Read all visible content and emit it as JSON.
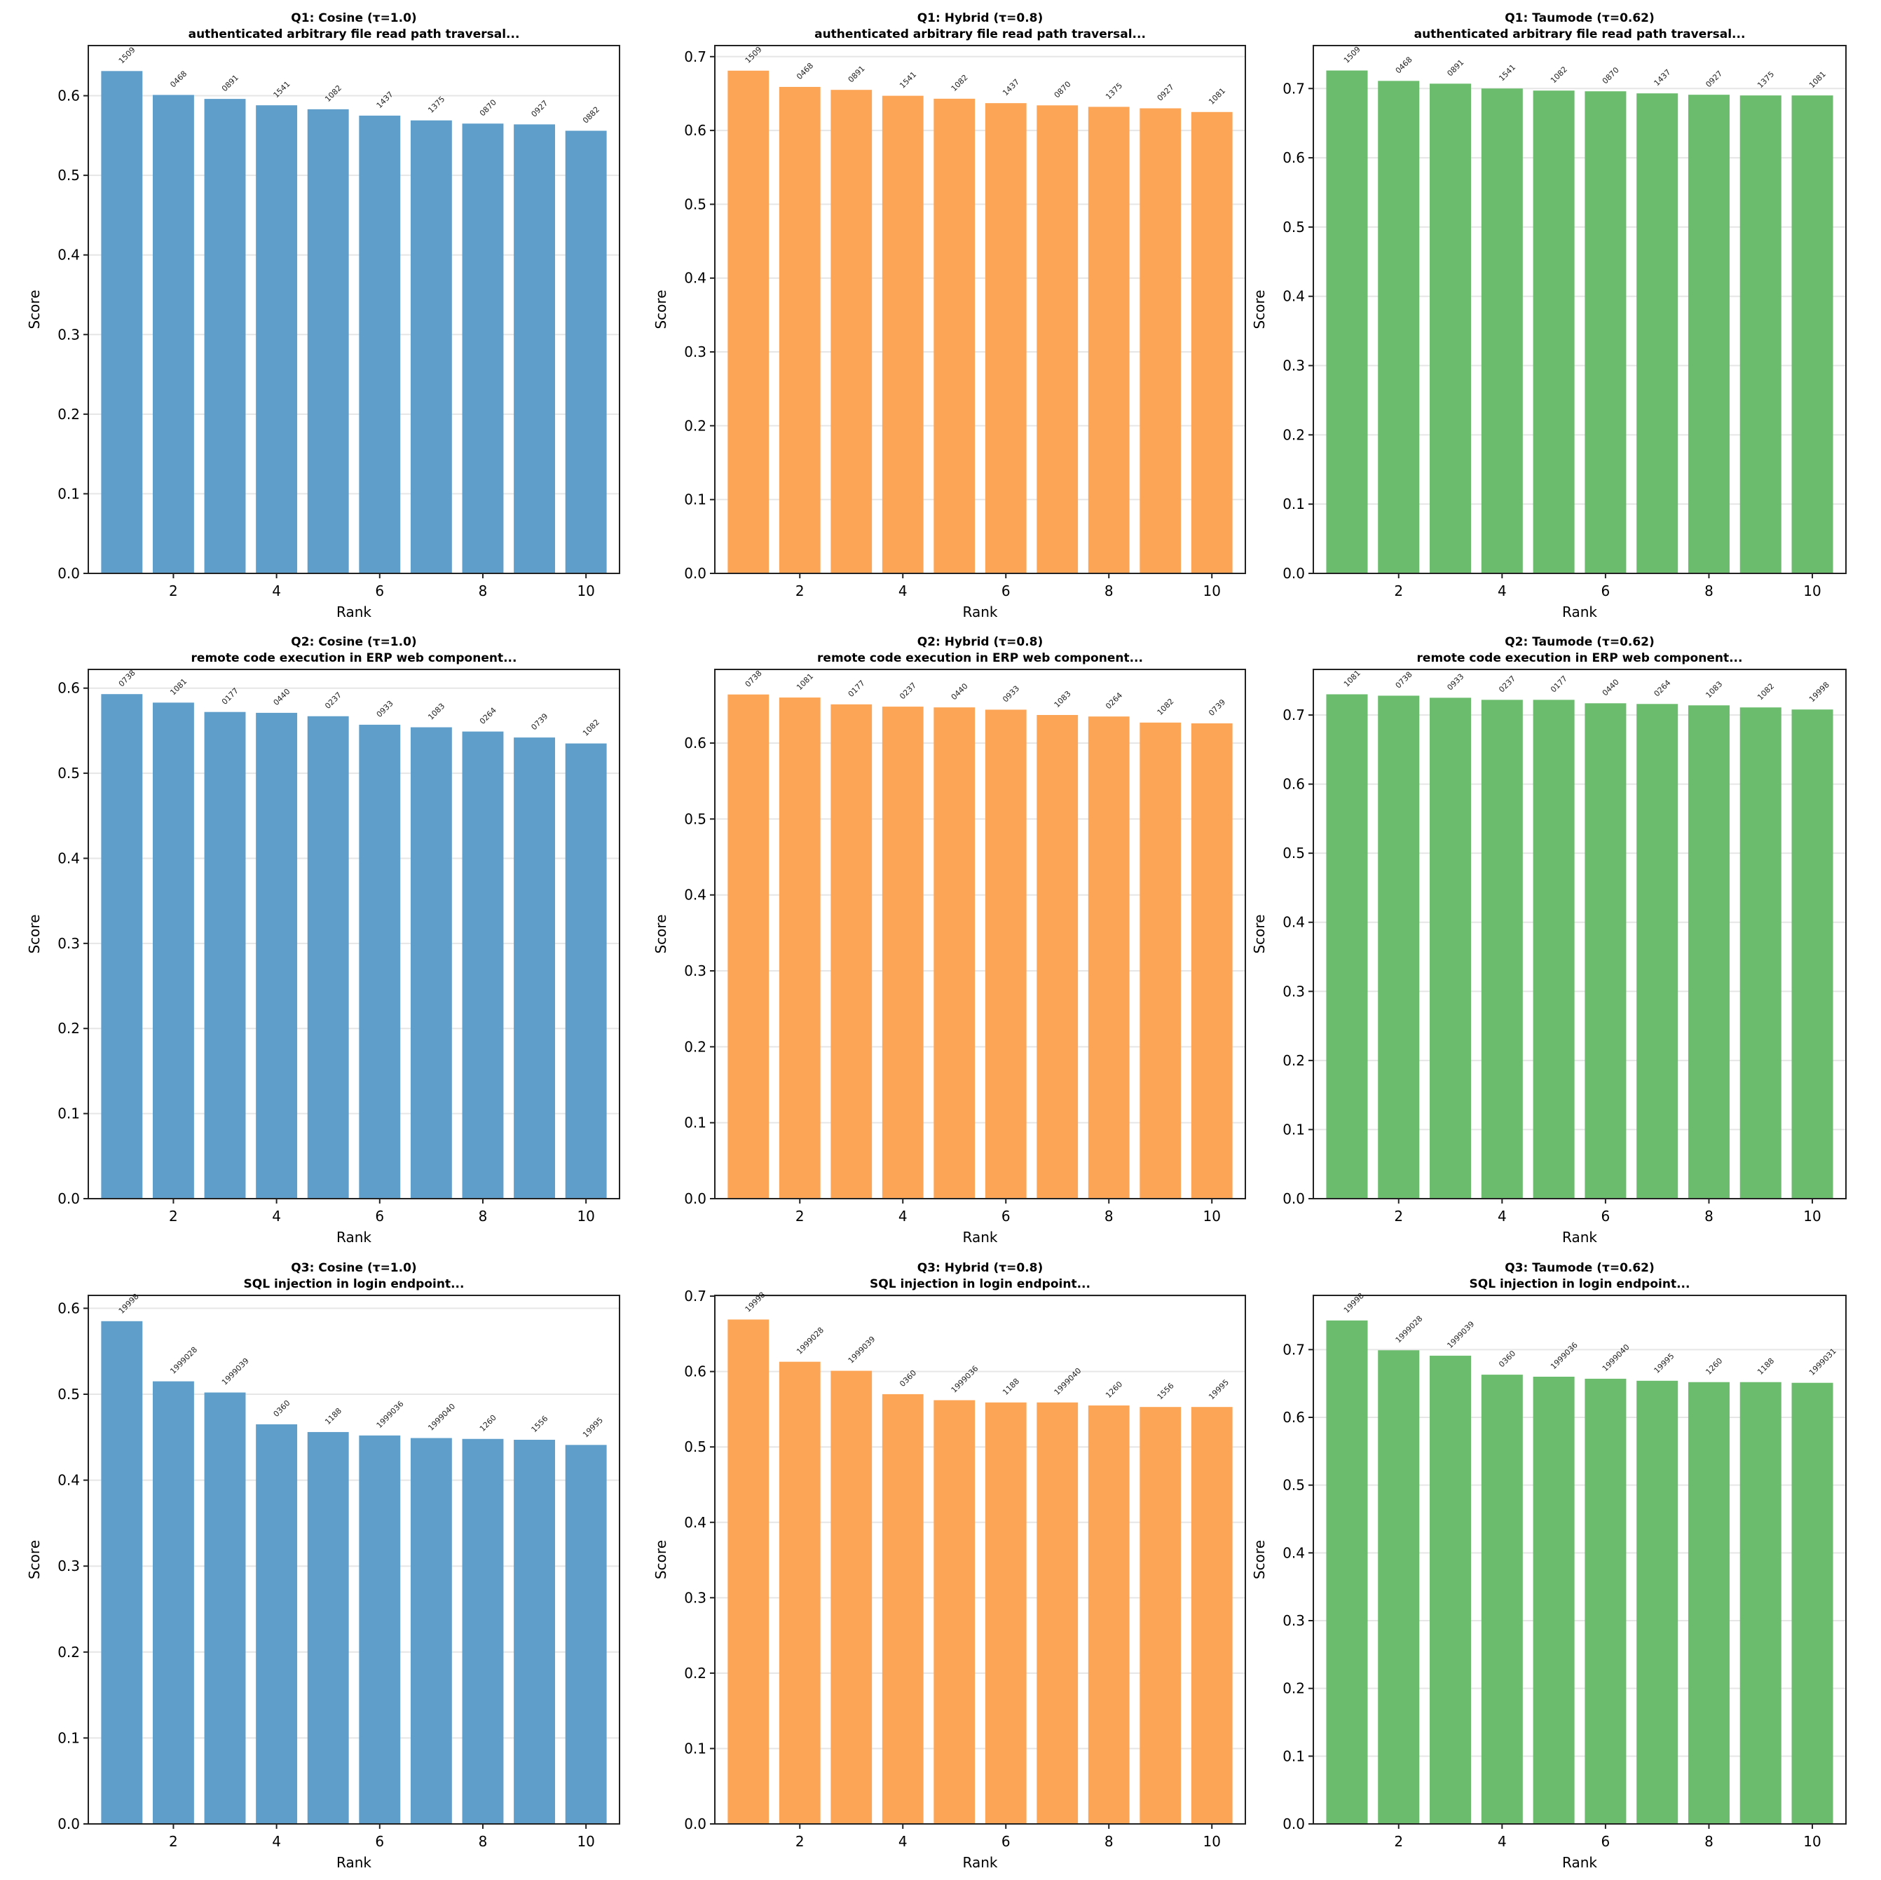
{
  "colors": {
    "Cosine": "#5f9ecb",
    "Hybrid": "#fda556",
    "Taumode": "#6bbd6d"
  },
  "chart_data": [
    {
      "type": "bar",
      "query": "Q1",
      "method": "Cosine",
      "title": "Q1: Cosine (τ=1.0)",
      "subtitle": "authenticated arbitrary file read path traversal...",
      "xlabel": "Rank",
      "ylabel": "Score",
      "ylim": [
        0,
        0.663
      ],
      "yticks": [
        0.0,
        0.1,
        0.2,
        0.3,
        0.4,
        0.5,
        0.6
      ],
      "ytick_labels": [
        "0.0",
        "0.1",
        "0.2",
        "0.3",
        "0.4",
        "0.5",
        "0.6"
      ],
      "xticks": [
        2,
        4,
        6,
        8,
        10
      ],
      "xtick_labels": [
        "2",
        "4",
        "6",
        "8",
        "10"
      ],
      "grid": "y",
      "x": [
        1,
        2,
        3,
        4,
        5,
        6,
        7,
        8,
        9,
        10
      ],
      "values": [
        0.631,
        0.601,
        0.596,
        0.588,
        0.583,
        0.575,
        0.569,
        0.565,
        0.564,
        0.556
      ],
      "bar_labels": [
        "1509",
        "0468",
        "0891",
        "1541",
        "1082",
        "1437",
        "1375",
        "0870",
        "0927",
        "0882"
      ]
    },
    {
      "type": "bar",
      "query": "Q1",
      "method": "Hybrid",
      "title": "Q1: Hybrid (τ=0.8)",
      "subtitle": "authenticated arbitrary file read path traversal...",
      "xlabel": "Rank",
      "ylabel": "Score",
      "ylim": [
        0,
        0.715
      ],
      "yticks": [
        0.0,
        0.1,
        0.2,
        0.3,
        0.4,
        0.5,
        0.6,
        0.7
      ],
      "ytick_labels": [
        "0.0",
        "0.1",
        "0.2",
        "0.3",
        "0.4",
        "0.5",
        "0.6",
        "0.7"
      ],
      "xticks": [
        2,
        4,
        6,
        8,
        10
      ],
      "xtick_labels": [
        "2",
        "4",
        "6",
        "8",
        "10"
      ],
      "grid": "y",
      "x": [
        1,
        2,
        3,
        4,
        5,
        6,
        7,
        8,
        9,
        10
      ],
      "values": [
        0.681,
        0.659,
        0.655,
        0.647,
        0.643,
        0.637,
        0.634,
        0.632,
        0.63,
        0.625
      ],
      "bar_labels": [
        "1509",
        "0468",
        "0891",
        "1541",
        "1082",
        "1437",
        "0870",
        "1375",
        "0927",
        "1081"
      ]
    },
    {
      "type": "bar",
      "query": "Q1",
      "method": "Taumode",
      "title": "Q1: Taumode (τ=0.62)",
      "subtitle": "authenticated arbitrary file read path traversal...",
      "xlabel": "Rank",
      "ylabel": "Score",
      "ylim": [
        0,
        0.762
      ],
      "yticks": [
        0.0,
        0.1,
        0.2,
        0.3,
        0.4,
        0.5,
        0.6,
        0.7
      ],
      "ytick_labels": [
        "0.0",
        "0.1",
        "0.2",
        "0.3",
        "0.4",
        "0.5",
        "0.6",
        "0.7"
      ],
      "xticks": [
        2,
        4,
        6,
        8,
        10
      ],
      "xtick_labels": [
        "2",
        "4",
        "6",
        "8",
        "10"
      ],
      "grid": "y",
      "x": [
        1,
        2,
        3,
        4,
        5,
        6,
        7,
        8,
        9,
        10
      ],
      "values": [
        0.726,
        0.711,
        0.707,
        0.7,
        0.697,
        0.696,
        0.693,
        0.691,
        0.69,
        0.69
      ],
      "bar_labels": [
        "1509",
        "0468",
        "0891",
        "1541",
        "1082",
        "0870",
        "1437",
        "0927",
        "1375",
        "1081"
      ]
    },
    {
      "type": "bar",
      "query": "Q2",
      "method": "Cosine",
      "title": "Q2: Cosine (τ=1.0)",
      "subtitle": "remote code execution in ERP web component...",
      "xlabel": "Rank",
      "ylabel": "Score",
      "ylim": [
        0,
        0.622
      ],
      "yticks": [
        0.0,
        0.1,
        0.2,
        0.3,
        0.4,
        0.5,
        0.6
      ],
      "ytick_labels": [
        "0.0",
        "0.1",
        "0.2",
        "0.3",
        "0.4",
        "0.5",
        "0.6"
      ],
      "xticks": [
        2,
        4,
        6,
        8,
        10
      ],
      "xtick_labels": [
        "2",
        "4",
        "6",
        "8",
        "10"
      ],
      "grid": "y",
      "x": [
        1,
        2,
        3,
        4,
        5,
        6,
        7,
        8,
        9,
        10
      ],
      "values": [
        0.593,
        0.583,
        0.572,
        0.571,
        0.567,
        0.557,
        0.554,
        0.549,
        0.542,
        0.535
      ],
      "bar_labels": [
        "0738",
        "1081",
        "0177",
        "0440",
        "0237",
        "0933",
        "1083",
        "0264",
        "0739",
        "1082"
      ]
    },
    {
      "type": "bar",
      "query": "Q2",
      "method": "Hybrid",
      "title": "Q2: Hybrid (τ=0.8)",
      "subtitle": "remote code execution in ERP web component...",
      "xlabel": "Rank",
      "ylabel": "Score",
      "ylim": [
        0,
        0.697
      ],
      "yticks": [
        0.0,
        0.1,
        0.2,
        0.3,
        0.4,
        0.5,
        0.6
      ],
      "ytick_labels": [
        "0.0",
        "0.1",
        "0.2",
        "0.3",
        "0.4",
        "0.5",
        "0.6"
      ],
      "xticks": [
        2,
        4,
        6,
        8,
        10
      ],
      "xtick_labels": [
        "2",
        "4",
        "6",
        "8",
        "10"
      ],
      "grid": "y",
      "x": [
        1,
        2,
        3,
        4,
        5,
        6,
        7,
        8,
        9,
        10
      ],
      "values": [
        0.664,
        0.66,
        0.651,
        0.648,
        0.647,
        0.644,
        0.637,
        0.635,
        0.627,
        0.626
      ],
      "bar_labels": [
        "0738",
        "1081",
        "0177",
        "0237",
        "0440",
        "0933",
        "1083",
        "0264",
        "1082",
        "0739"
      ]
    },
    {
      "type": "bar",
      "query": "Q2",
      "method": "Taumode",
      "title": "Q2: Taumode (τ=0.62)",
      "subtitle": "remote code execution in ERP web component...",
      "xlabel": "Rank",
      "ylabel": "Score",
      "ylim": [
        0,
        0.766
      ],
      "yticks": [
        0.0,
        0.1,
        0.2,
        0.3,
        0.4,
        0.5,
        0.6,
        0.7
      ],
      "ytick_labels": [
        "0.0",
        "0.1",
        "0.2",
        "0.3",
        "0.4",
        "0.5",
        "0.6",
        "0.7"
      ],
      "xticks": [
        2,
        4,
        6,
        8,
        10
      ],
      "xtick_labels": [
        "2",
        "4",
        "6",
        "8",
        "10"
      ],
      "grid": "y",
      "x": [
        1,
        2,
        3,
        4,
        5,
        6,
        7,
        8,
        9,
        10
      ],
      "values": [
        0.73,
        0.728,
        0.725,
        0.722,
        0.722,
        0.717,
        0.716,
        0.714,
        0.711,
        0.708
      ],
      "bar_labels": [
        "1081",
        "0738",
        "0933",
        "0237",
        "0177",
        "0440",
        "0264",
        "1083",
        "1082",
        "19998"
      ]
    },
    {
      "type": "bar",
      "query": "Q3",
      "method": "Cosine",
      "title": "Q3: Cosine (τ=1.0)",
      "subtitle": "SQL injection in login endpoint...",
      "xlabel": "Rank",
      "ylabel": "Score",
      "ylim": [
        0,
        0.615
      ],
      "yticks": [
        0.0,
        0.1,
        0.2,
        0.3,
        0.4,
        0.5,
        0.6
      ],
      "ytick_labels": [
        "0.0",
        "0.1",
        "0.2",
        "0.3",
        "0.4",
        "0.5",
        "0.6"
      ],
      "xticks": [
        2,
        4,
        6,
        8,
        10
      ],
      "xtick_labels": [
        "2",
        "4",
        "6",
        "8",
        "10"
      ],
      "grid": "y",
      "x": [
        1,
        2,
        3,
        4,
        5,
        6,
        7,
        8,
        9,
        10
      ],
      "values": [
        0.585,
        0.515,
        0.502,
        0.465,
        0.456,
        0.452,
        0.449,
        0.448,
        0.447,
        0.441
      ],
      "bar_labels": [
        "19998",
        "1999028",
        "1999039",
        "0360",
        "1188",
        "1999036",
        "1999040",
        "1260",
        "1556",
        "19995"
      ]
    },
    {
      "type": "bar",
      "query": "Q3",
      "method": "Hybrid",
      "title": "Q3: Hybrid (τ=0.8)",
      "subtitle": "SQL injection in login endpoint...",
      "xlabel": "Rank",
      "ylabel": "Score",
      "ylim": [
        0,
        0.701
      ],
      "yticks": [
        0.0,
        0.1,
        0.2,
        0.3,
        0.4,
        0.5,
        0.6,
        0.7
      ],
      "ytick_labels": [
        "0.0",
        "0.1",
        "0.2",
        "0.3",
        "0.4",
        "0.5",
        "0.6",
        "0.7"
      ],
      "xticks": [
        2,
        4,
        6,
        8,
        10
      ],
      "xtick_labels": [
        "2",
        "4",
        "6",
        "8",
        "10"
      ],
      "grid": "y",
      "x": [
        1,
        2,
        3,
        4,
        5,
        6,
        7,
        8,
        9,
        10
      ],
      "values": [
        0.669,
        0.613,
        0.601,
        0.57,
        0.562,
        0.559,
        0.559,
        0.555,
        0.553,
        0.553
      ],
      "bar_labels": [
        "19998",
        "1999028",
        "1999039",
        "0360",
        "1999036",
        "1188",
        "1999040",
        "1260",
        "1556",
        "19995"
      ]
    },
    {
      "type": "bar",
      "query": "Q3",
      "method": "Taumode",
      "title": "Q3: Taumode (τ=0.62)",
      "subtitle": "SQL injection in login endpoint...",
      "xlabel": "Rank",
      "ylabel": "Score",
      "ylim": [
        0,
        0.78
      ],
      "yticks": [
        0.0,
        0.1,
        0.2,
        0.3,
        0.4,
        0.5,
        0.6,
        0.7
      ],
      "ytick_labels": [
        "0.0",
        "0.1",
        "0.2",
        "0.3",
        "0.4",
        "0.5",
        "0.6",
        "0.7"
      ],
      "xticks": [
        2,
        4,
        6,
        8,
        10
      ],
      "xtick_labels": [
        "2",
        "4",
        "6",
        "8",
        "10"
      ],
      "grid": "y",
      "x": [
        1,
        2,
        3,
        4,
        5,
        6,
        7,
        8,
        9,
        10
      ],
      "values": [
        0.743,
        0.699,
        0.691,
        0.663,
        0.66,
        0.657,
        0.654,
        0.652,
        0.652,
        0.651
      ],
      "bar_labels": [
        "19998",
        "1999028",
        "1999039",
        "0360",
        "1999036",
        "1999040",
        "19995",
        "1260",
        "1188",
        "1999031"
      ]
    }
  ]
}
